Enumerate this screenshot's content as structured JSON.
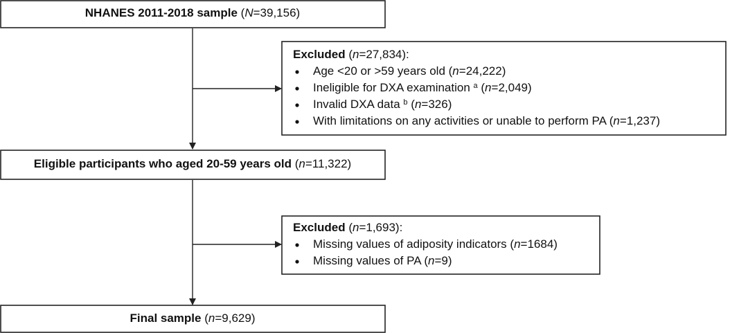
{
  "steps": [
    {
      "runs": [
        {
          "text": "NHANES 2011-2018 sample",
          "style": "bold"
        },
        {
          "text": " ("
        },
        {
          "text": "N",
          "style": "italic"
        },
        {
          "text": "=39,156)"
        }
      ]
    },
    {
      "runs": [
        {
          "text": "Eligible participants who aged 20-59 years old",
          "style": "bold"
        },
        {
          "text": " ("
        },
        {
          "text": "n",
          "style": "italic"
        },
        {
          "text": "=11,322)"
        }
      ]
    },
    {
      "runs": [
        {
          "text": "Final sample",
          "style": "bold"
        },
        {
          "text": " ("
        },
        {
          "text": "n",
          "style": "italic"
        },
        {
          "text": "=9,629)"
        }
      ]
    }
  ],
  "exclusions": [
    {
      "heading": [
        {
          "text": "Excluded",
          "style": "bold"
        },
        {
          "text": " ("
        },
        {
          "text": "n",
          "style": "italic"
        },
        {
          "text": "=27,834):"
        }
      ],
      "items": [
        [
          {
            "text": "Age <20 or >59 years old ("
          },
          {
            "text": "n",
            "style": "italic"
          },
          {
            "text": "=24,222)"
          }
        ],
        [
          {
            "text": "Ineligible for DXA examination "
          },
          {
            "text": "a",
            "style": "superscript"
          },
          {
            "text": " ("
          },
          {
            "text": "n",
            "style": "italic"
          },
          {
            "text": "=2,049)"
          }
        ],
        [
          {
            "text": "Invalid DXA data "
          },
          {
            "text": "b",
            "style": "superscript"
          },
          {
            "text": " ("
          },
          {
            "text": "n",
            "style": "italic"
          },
          {
            "text": "=326)"
          }
        ],
        [
          {
            "text": "With limitations on any activities or unable to perform PA ("
          },
          {
            "text": "n",
            "style": "italic"
          },
          {
            "text": "=1,237)"
          }
        ]
      ]
    },
    {
      "heading": [
        {
          "text": "Excluded",
          "style": "bold"
        },
        {
          "text": " ("
        },
        {
          "text": "n",
          "style": "italic"
        },
        {
          "text": "=1,693):"
        }
      ],
      "items": [
        [
          {
            "text": "Missing values of adiposity indicators ("
          },
          {
            "text": "n",
            "style": "italic"
          },
          {
            "text": "=1684)"
          }
        ],
        [
          {
            "text": "Missing values of PA ("
          },
          {
            "text": "n",
            "style": "italic"
          },
          {
            "text": "=9)"
          }
        ]
      ]
    }
  ]
}
